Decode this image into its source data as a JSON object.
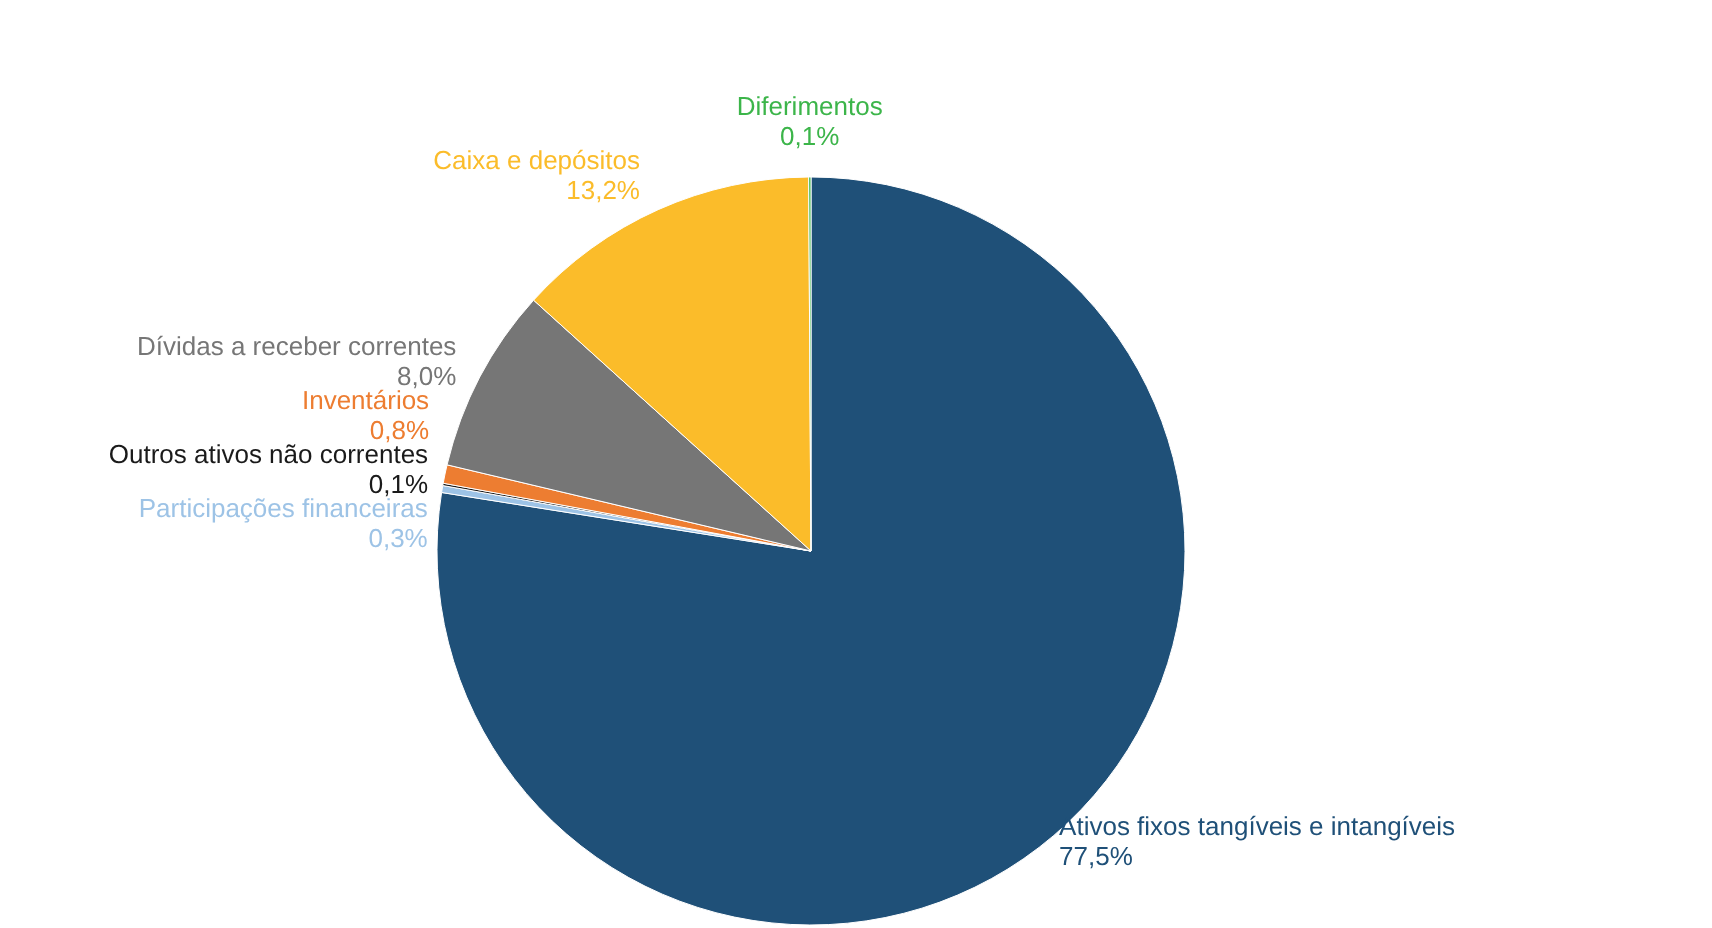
{
  "chart_data": {
    "type": "pie",
    "categories": [
      "Ativos fixos tangíveis e intangíveis",
      "Participações financeiras",
      "Outros ativos não correntes",
      "Inventários",
      "Dívidas a receber correntes",
      "Caixa e depósitos",
      "Diferimentos"
    ],
    "values": [
      77.5,
      0.3,
      0.1,
      0.8,
      8.0,
      13.2,
      0.1
    ],
    "value_labels": [
      "77,5%",
      "0,3%",
      "0,1%",
      "0,8%",
      "8,0%",
      "13,2%",
      "0,1%"
    ],
    "colors": [
      "#1f5078",
      "#9dc3e6",
      "#1a1a1a",
      "#ed7d31",
      "#767676",
      "#fbbc2a",
      "#3cb54a"
    ]
  }
}
